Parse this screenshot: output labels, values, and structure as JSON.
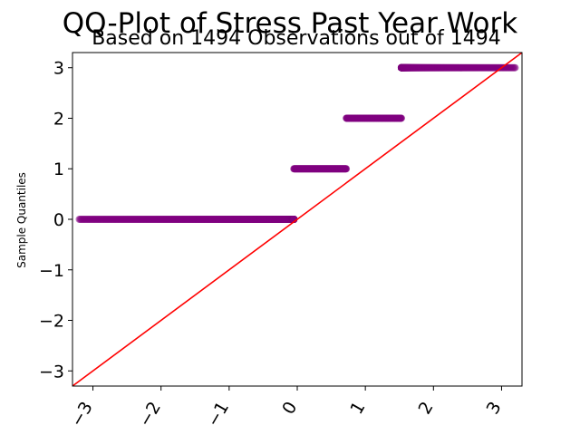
{
  "chart_data": {
    "type": "scatter",
    "title": "QQ-Plot of Stress Past Year Work",
    "subtitle": "Based on 1494 Observations out of 1494",
    "xlabel": "",
    "ylabel": "Sample Quantiles",
    "xlim": [
      -3.3,
      3.3
    ],
    "ylim": [
      -3.3,
      3.3
    ],
    "x_ticks": [
      -3,
      -2,
      -1,
      0,
      1,
      2,
      3
    ],
    "x_tick_labels": [
      "−3",
      "−2",
      "−1",
      "0",
      "1",
      "2",
      "3"
    ],
    "y_ticks": [
      -3,
      -2,
      -1,
      0,
      1,
      2,
      3
    ],
    "y_tick_labels": [
      "−3",
      "−2",
      "−1",
      "0",
      "1",
      "2",
      "3"
    ],
    "grid": false,
    "marker_color": "#800080",
    "line_color": "#ff0000",
    "reference_line": {
      "slope": 1,
      "intercept": 0
    },
    "series": [
      {
        "y": 0,
        "x_min": -3.2,
        "x_max": -0.05
      },
      {
        "y": 1,
        "x_min": -0.05,
        "x_max": 0.72
      },
      {
        "y": 2,
        "x_min": 0.72,
        "x_max": 1.53
      },
      {
        "y": 3,
        "x_min": 1.53,
        "x_max": 3.2
      }
    ]
  }
}
